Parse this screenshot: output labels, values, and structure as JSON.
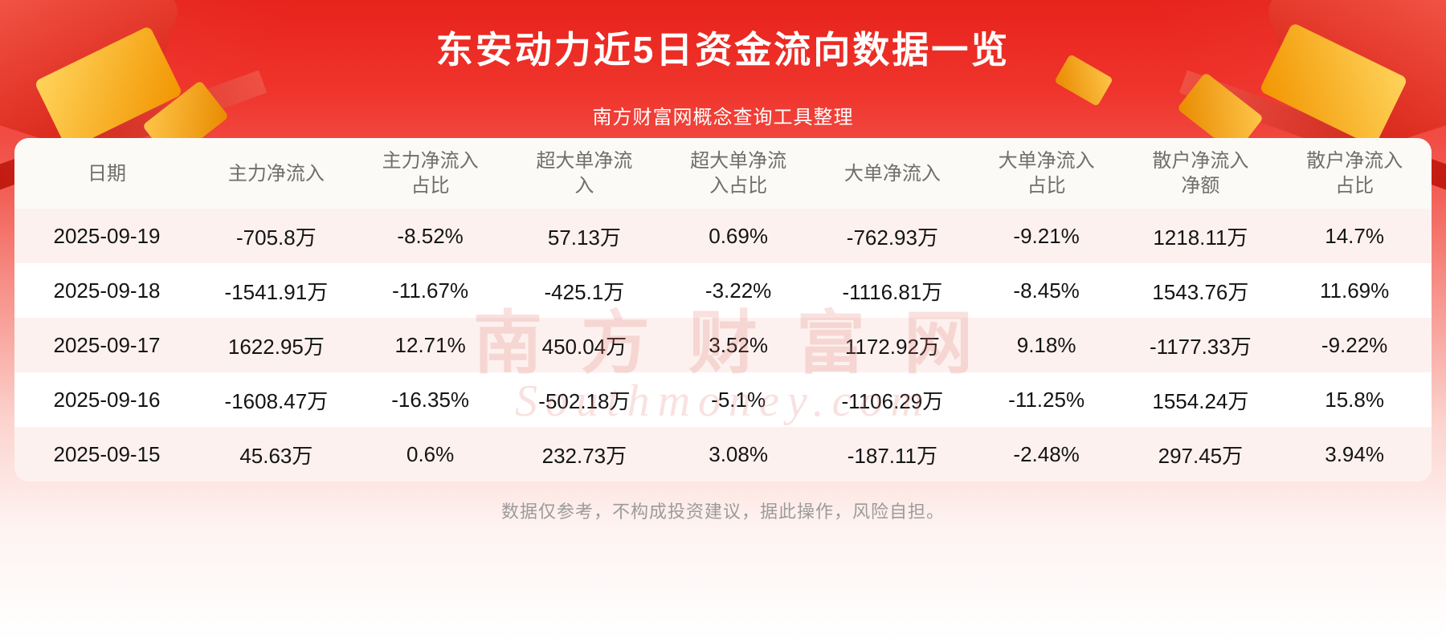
{
  "header": {
    "title": "东安动力近5日资金流向数据一览",
    "subtitle": "南方财富网概念查询工具整理"
  },
  "table": {
    "columns": [
      "日期",
      "主力净流入",
      "主力净流入\n占比",
      "超大单净流\n入",
      "超大单净流\n入占比",
      "大单净流入",
      "大单净流入\n占比",
      "散户净流入\n净额",
      "散户净流入\n占比"
    ],
    "rows": [
      [
        "2025-09-19",
        "-705.8万",
        "-8.52%",
        "57.13万",
        "0.69%",
        "-762.93万",
        "-9.21%",
        "1218.11万",
        "14.7%"
      ],
      [
        "2025-09-18",
        "-1541.91万",
        "-11.67%",
        "-425.1万",
        "-3.22%",
        "-1116.81万",
        "-8.45%",
        "1543.76万",
        "11.69%"
      ],
      [
        "2025-09-17",
        "1622.95万",
        "12.71%",
        "450.04万",
        "3.52%",
        "1172.92万",
        "9.18%",
        "-1177.33万",
        "-9.22%"
      ],
      [
        "2025-09-16",
        "-1608.47万",
        "-16.35%",
        "-502.18万",
        "-5.1%",
        "-1106.29万",
        "-11.25%",
        "1554.24万",
        "15.8%"
      ],
      [
        "2025-09-15",
        "45.63万",
        "0.6%",
        "232.73万",
        "3.08%",
        "-187.11万",
        "-2.48%",
        "297.45万",
        "3.94%"
      ]
    ]
  },
  "chart_data": {
    "type": "table",
    "title": "东安动力近5日资金流向数据一览",
    "subtitle": "南方财富网概念查询工具整理",
    "columns": [
      "日期",
      "主力净流入",
      "主力净流入占比",
      "超大单净流入",
      "超大单净流入占比",
      "大单净流入",
      "大单净流入占比",
      "散户净流入净额",
      "散户净流入占比"
    ],
    "rows": [
      [
        "2025-09-19",
        "-705.8万",
        "-8.52%",
        "57.13万",
        "0.69%",
        "-762.93万",
        "-9.21%",
        "1218.11万",
        "14.7%"
      ],
      [
        "2025-09-18",
        "-1541.91万",
        "-11.67%",
        "-425.1万",
        "-3.22%",
        "-1116.81万",
        "-8.45%",
        "1543.76万",
        "11.69%"
      ],
      [
        "2025-09-17",
        "1622.95万",
        "12.71%",
        "450.04万",
        "3.52%",
        "1172.92万",
        "9.18%",
        "-1177.33万",
        "-9.22%"
      ],
      [
        "2025-09-16",
        "-1608.47万",
        "-16.35%",
        "-502.18万",
        "-5.1%",
        "-1106.29万",
        "-11.25%",
        "1554.24万",
        "15.8%"
      ],
      [
        "2025-09-15",
        "45.63万",
        "0.6%",
        "232.73万",
        "3.08%",
        "-187.11万",
        "-2.48%",
        "297.45万",
        "3.94%"
      ]
    ]
  },
  "watermark": {
    "line1": "南方财富网",
    "line2": "Southmoney.com"
  },
  "footer": {
    "disclaimer": "数据仅参考，不构成投资建议，据此操作，风险自担。"
  },
  "colors": {
    "banner_red": "#ee2b24",
    "accent_gold": "#f5a623",
    "row_alt_pink": "#fdf1ef",
    "header_text": "#6e6e6c",
    "body_text": "#141414",
    "disclaimer_text": "#9b9b9b",
    "watermark_pink": "#de766c"
  }
}
